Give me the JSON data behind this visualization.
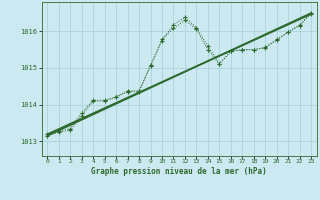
{
  "title": "Graphe pression niveau de la mer (hPa)",
  "bg_color": "#cce8f0",
  "grid_color": "#aad4de",
  "line_color": "#2d6a2d",
  "xlim": [
    -0.5,
    23.5
  ],
  "ylim": [
    1012.6,
    1016.8
  ],
  "yticks": [
    1013,
    1014,
    1015,
    1016
  ],
  "xticks": [
    0,
    1,
    2,
    3,
    4,
    5,
    6,
    7,
    8,
    9,
    10,
    11,
    12,
    13,
    14,
    15,
    16,
    17,
    18,
    19,
    20,
    21,
    22,
    23
  ],
  "series1_x": [
    0,
    1,
    2,
    3,
    4,
    5,
    6,
    7,
    8,
    9,
    10,
    11,
    12,
    13,
    14,
    15,
    16,
    17,
    18,
    19,
    20,
    21,
    22,
    23
  ],
  "series1_y": [
    1013.15,
    1013.25,
    1013.3,
    1013.7,
    1014.1,
    1014.1,
    1014.2,
    1014.35,
    1014.35,
    1015.05,
    1015.75,
    1016.18,
    1016.38,
    1016.1,
    1015.6,
    1015.12,
    1015.45,
    1015.5,
    1015.5,
    1015.55,
    1015.78,
    1015.98,
    1016.18,
    1016.5
  ],
  "series2_x": [
    0,
    1,
    2,
    3,
    4,
    5,
    6,
    7,
    8,
    9,
    10,
    11,
    12,
    13,
    14,
    15,
    16,
    17,
    18,
    19,
    20,
    21,
    22,
    23
  ],
  "series2_y": [
    1013.2,
    1013.28,
    1013.35,
    1013.78,
    1014.12,
    1014.12,
    1014.22,
    1014.38,
    1014.38,
    1015.08,
    1015.78,
    1016.08,
    1016.3,
    1016.06,
    1015.5,
    1015.1,
    1015.46,
    1015.5,
    1015.5,
    1015.56,
    1015.76,
    1015.98,
    1016.15,
    1016.48
  ],
  "line1_x": [
    0,
    23
  ],
  "line1_y": [
    1013.15,
    1016.5
  ],
  "line2_x": [
    0,
    23
  ],
  "line2_y": [
    1013.2,
    1016.48
  ],
  "line3_x": [
    0,
    23
  ],
  "line3_y": [
    1013.18,
    1016.46
  ]
}
